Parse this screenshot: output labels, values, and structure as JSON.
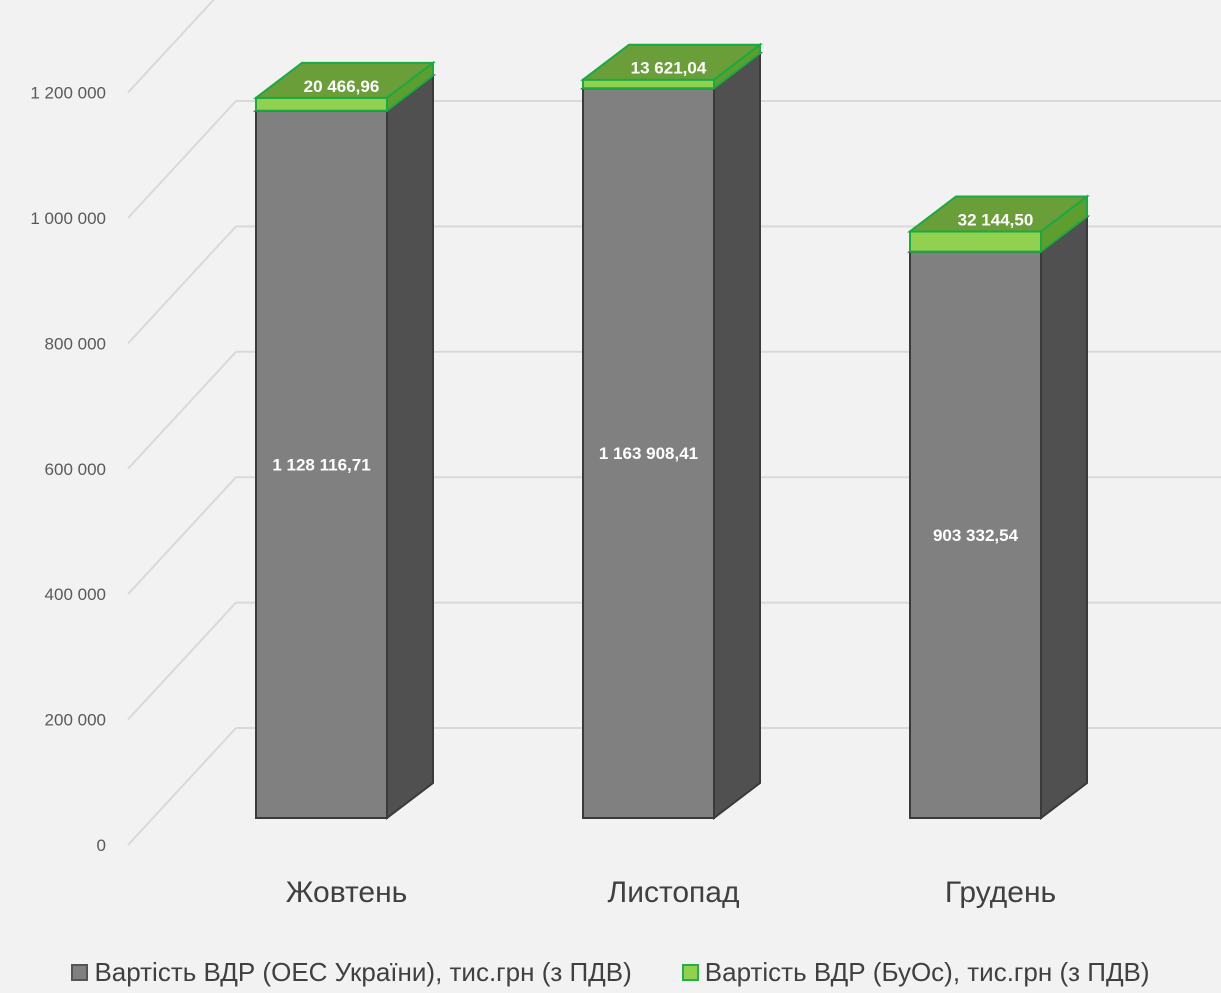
{
  "chart_data": {
    "type": "bar",
    "stacked": true,
    "style": "3d",
    "categories": [
      "Жовтень",
      "Листопад",
      "Грудень"
    ],
    "series": [
      {
        "name": "Вартість ВДР (ОЕС України), тис.грн (з ПДВ)",
        "values": [
          1128116.71,
          1163908.41,
          903332.54
        ],
        "labels": [
          "1 128 116,71",
          "1 163 908,41",
          "903 332,54"
        ],
        "color": "#808080"
      },
      {
        "name": "Вартість ВДР (БуОс), тис.грн (з ПДВ)",
        "values": [
          20466.96,
          13621.04,
          32144.5
        ],
        "labels": [
          "20 466,96",
          "13 621,04",
          "32 144,50"
        ],
        "color": "#92d050"
      }
    ],
    "yticks": [
      "0",
      "200 000",
      "400 000",
      "600 000",
      "800 000",
      "1 000 000",
      "1 200 000"
    ],
    "ylim": [
      0,
      1200000
    ],
    "grid": true,
    "legend": "bottom",
    "title": "",
    "xlabel": "",
    "ylabel": ""
  }
}
